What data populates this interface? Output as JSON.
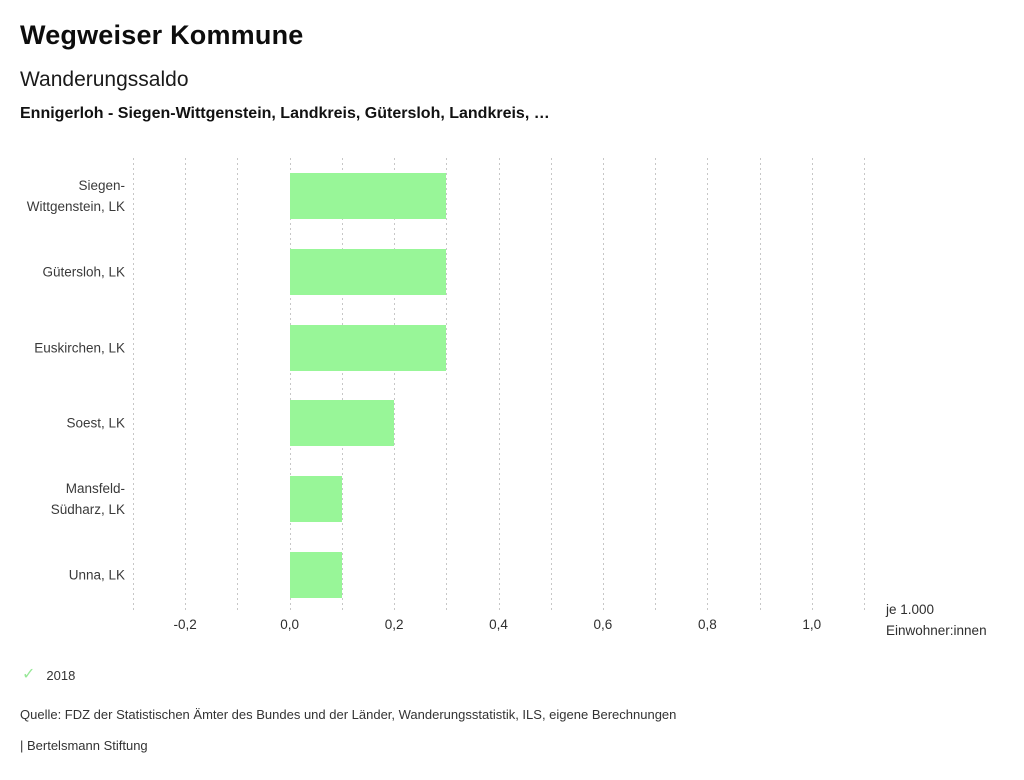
{
  "header": {
    "app_title": "Wegweiser Kommune",
    "chart_title": "Wanderungssaldo",
    "subtitle": "Ennigerloh - Siegen-Wittgenstein, Landkreis, Gütersloh, Landkreis, …"
  },
  "chart_data": {
    "type": "bar",
    "orientation": "horizontal",
    "title": "Wanderungssaldo",
    "categories": [
      "Siegen-Wittgenstein, LK",
      "Gütersloh, LK",
      "Euskirchen, LK",
      "Soest, LK",
      "Mansfeld-Südharz, LK",
      "Unna, LK"
    ],
    "series": [
      {
        "name": "2018",
        "values": [
          0.3,
          0.3,
          0.3,
          0.2,
          0.1,
          0.1
        ]
      }
    ],
    "unit_line1": "je 1.000",
    "unit_line2": "Einwohner:innen",
    "value_unit": "je 1.000 Einwohner:innen",
    "xlim": [
      -0.3,
      1.1
    ],
    "grid_step": 0.1,
    "grid": "vertical-dashed",
    "x_ticks": [
      {
        "value": -0.2,
        "label": "-0,2"
      },
      {
        "value": 0.0,
        "label": "0,0"
      },
      {
        "value": 0.2,
        "label": "0,2"
      },
      {
        "value": 0.4,
        "label": "0,4"
      },
      {
        "value": 0.6,
        "label": "0,6"
      },
      {
        "value": 0.8,
        "label": "0,8"
      },
      {
        "value": 1.0,
        "label": "1,0"
      }
    ],
    "bar_color": "#98f698",
    "grid_color": "#c7c7c7",
    "legend_position": "bottom-left"
  },
  "legend": {
    "check_icon": "✓",
    "check_color": "#98e898",
    "year": "2018"
  },
  "footer": {
    "source": "Quelle: FDZ der Statistischen Ämter des Bundes und der Länder, Wanderungsstatistik, ILS, eigene Berechnungen",
    "branding": "| Bertelsmann Stiftung"
  }
}
